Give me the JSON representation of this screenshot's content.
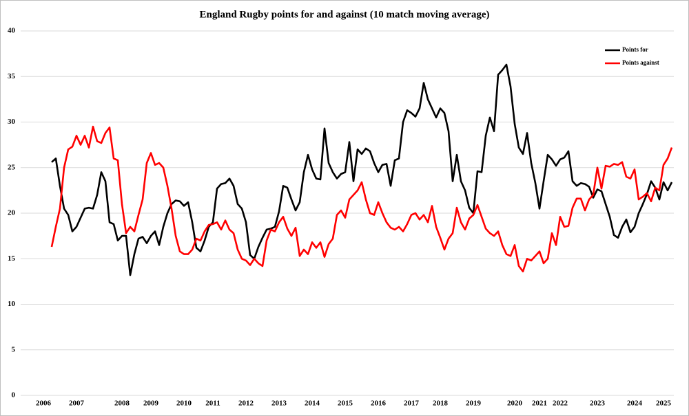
{
  "chart_data": {
    "type": "line",
    "title": "England Rugby points for and against (10 match moving average)",
    "categories": [
      null,
      null,
      null,
      null,
      null,
      "2006",
      null,
      null,
      null,
      null,
      null,
      null,
      null,
      "2007",
      null,
      null,
      null,
      null,
      null,
      null,
      null,
      null,
      null,
      null,
      "2008",
      null,
      null,
      null,
      null,
      null,
      null,
      "2009",
      null,
      null,
      null,
      null,
      null,
      null,
      null,
      "2010",
      null,
      null,
      null,
      null,
      null,
      null,
      "2011",
      null,
      null,
      null,
      null,
      null,
      null,
      null,
      "2012",
      null,
      null,
      null,
      null,
      null,
      null,
      null,
      "2013",
      null,
      null,
      null,
      null,
      null,
      null,
      null,
      "2014",
      null,
      null,
      null,
      null,
      null,
      null,
      null,
      "2015",
      null,
      null,
      null,
      null,
      null,
      null,
      null,
      "2016",
      null,
      null,
      null,
      null,
      null,
      null,
      null,
      "2017",
      null,
      null,
      null,
      null,
      null,
      null,
      "2018",
      null,
      null,
      null,
      null,
      null,
      null,
      null,
      "2019",
      null,
      null,
      null,
      null,
      null,
      null,
      null,
      null,
      null,
      "2020",
      null,
      null,
      null,
      null,
      null,
      "2021",
      null,
      null,
      null,
      null,
      "2022",
      null,
      null,
      null,
      null,
      null,
      null,
      null,
      null,
      "2023",
      null,
      null,
      null,
      null,
      null,
      null,
      null,
      null,
      "2024",
      null,
      null,
      null,
      null,
      null,
      null,
      "2025",
      null,
      null
    ],
    "series": [
      {
        "name": "Points for",
        "color": "#000000",
        "values": [
          null,
          null,
          null,
          null,
          null,
          null,
          null,
          25.6,
          26.0,
          23,
          20.5,
          19.8,
          18,
          18.5,
          19.5,
          20.5,
          20.6,
          20.5,
          22,
          24.5,
          23.5,
          19,
          18.8,
          17,
          17.5,
          17.5,
          13.2,
          15.5,
          17.2,
          17.4,
          16.7,
          17.5,
          18,
          16.5,
          18.5,
          20,
          21,
          21.4,
          21.3,
          20.8,
          21.2,
          19,
          16.2,
          15.8,
          17,
          18.5,
          19,
          22.7,
          23.2,
          23.3,
          23.8,
          23,
          21,
          20.5,
          19,
          15.4,
          15,
          16.3,
          17.3,
          18.2,
          18.3,
          18.5,
          20.2,
          23,
          22.8,
          21.5,
          20.3,
          21.2,
          24.5,
          26.4,
          24.8,
          23.8,
          23.7,
          29.3,
          25.5,
          24.5,
          23.8,
          24.3,
          24.5,
          27.8,
          23.5,
          27,
          26.5,
          27.1,
          26.8,
          25.5,
          24.5,
          25.3,
          25.4,
          23,
          25.8,
          26,
          30,
          31.3,
          31,
          30.6,
          31.5,
          34.3,
          32.5,
          31.5,
          30.5,
          31.5,
          31,
          29,
          23.5,
          26.4,
          23.5,
          22.5,
          20.6,
          20,
          24.6,
          24.5,
          28.5,
          30.5,
          29,
          35.2,
          35.7,
          36.3,
          33.9,
          29.8,
          27.2,
          26.5,
          28.8,
          25.5,
          23.3,
          20.5,
          23.5,
          26.4,
          25.9,
          25.2,
          25.9,
          26.1,
          26.8,
          23.5,
          23,
          23.3,
          23.2,
          22.9,
          21.7,
          22.6,
          22.4,
          21,
          19.6,
          17.6,
          17.3,
          18.5,
          19.3,
          17.9,
          18.5,
          20,
          21,
          22.1,
          23.5,
          22.8,
          21.5,
          23.4,
          22.5,
          23.4
        ]
      },
      {
        "name": "Points against",
        "color": "#ff0000",
        "values": [
          null,
          null,
          null,
          null,
          null,
          null,
          null,
          16.3,
          18.5,
          20.5,
          25,
          27,
          27.3,
          28.5,
          27.5,
          28.5,
          27.2,
          29.5,
          27.9,
          27.7,
          28.8,
          29.4,
          26,
          25.8,
          21,
          17.8,
          18.5,
          18,
          19.8,
          21.5,
          25.5,
          26.6,
          25.3,
          25.5,
          25,
          23,
          20.5,
          17.5,
          15.8,
          15.5,
          15.5,
          16,
          17.2,
          17,
          18,
          18.7,
          18.8,
          19,
          18.2,
          19.2,
          18.2,
          17.8,
          16,
          15,
          14.8,
          14.3,
          15,
          14.5,
          14.2,
          17,
          18.2,
          18,
          19,
          19.6,
          18.3,
          17.5,
          18.4,
          15.3,
          16,
          15.5,
          16.8,
          16.2,
          16.8,
          15.2,
          16.6,
          17.2,
          19.8,
          20.3,
          19.5,
          21.5,
          22,
          22.5,
          23.4,
          21.5,
          20,
          19.8,
          21.2,
          20,
          19,
          18.4,
          18.2,
          18.5,
          18,
          18.8,
          19.8,
          20,
          19.3,
          19.8,
          19,
          20.8,
          18.5,
          17.3,
          16,
          17.2,
          17.8,
          20.6,
          19,
          18.2,
          19.4,
          19.8,
          20.9,
          19.6,
          18.3,
          17.8,
          17.5,
          18,
          16.5,
          15.5,
          15.3,
          16.5,
          14.2,
          13.6,
          15,
          14.8,
          15.3,
          15.8,
          14.5,
          15,
          17.8,
          16.5,
          19.6,
          18.5,
          18.6,
          20.6,
          21.6,
          21.6,
          20.3,
          21.5,
          22,
          25,
          22.7,
          25.2,
          25.1,
          25.4,
          25.3,
          25.6,
          24,
          23.8,
          24.8,
          21.5,
          21.8,
          22.2,
          21.3,
          22.8,
          22.5,
          25.3,
          26,
          27.2
        ]
      }
    ],
    "ylim": [
      0,
      40
    ],
    "yticks": [
      0,
      5,
      10,
      15,
      20,
      25,
      30,
      35,
      40
    ],
    "grid": true,
    "legend": "upper right"
  }
}
